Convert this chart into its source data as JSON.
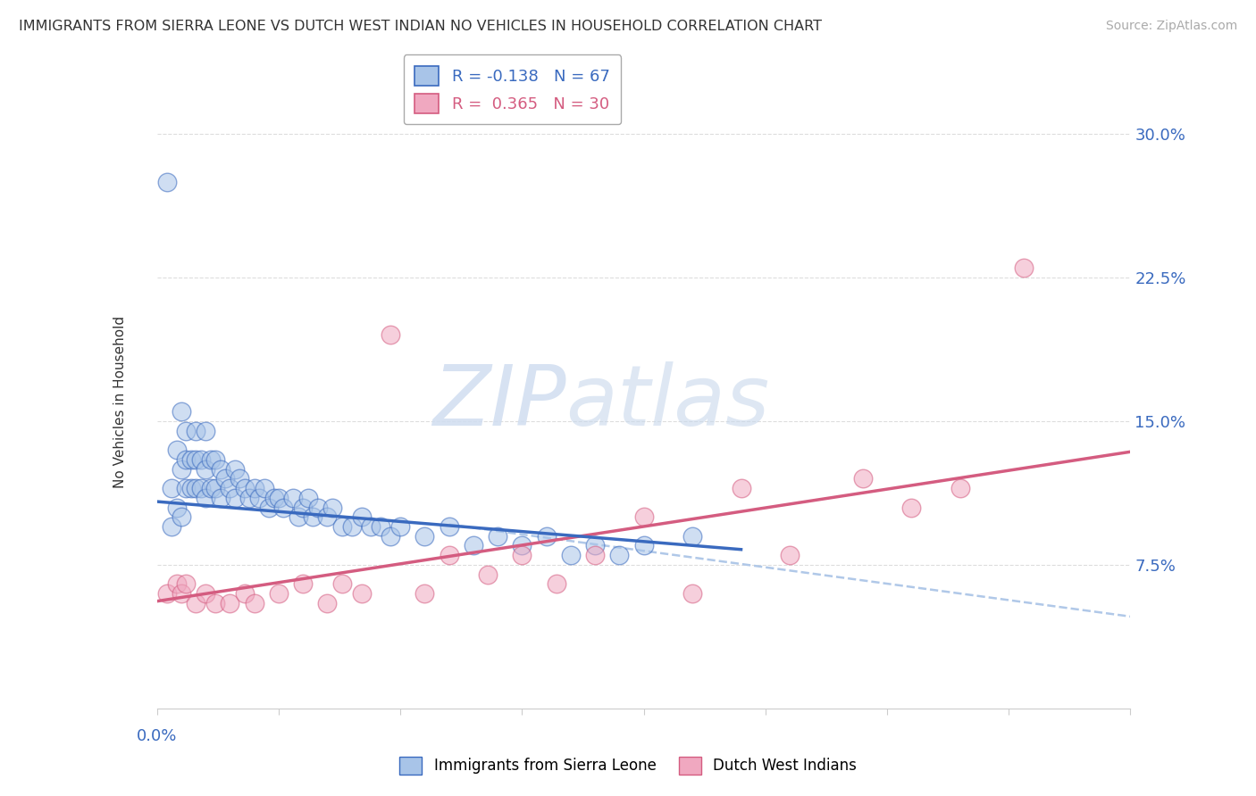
{
  "title": "IMMIGRANTS FROM SIERRA LEONE VS DUTCH WEST INDIAN NO VEHICLES IN HOUSEHOLD CORRELATION CHART",
  "source": "Source: ZipAtlas.com",
  "legend_blue": "R = -0.138   N = 67",
  "legend_pink": "R =  0.365   N = 30",
  "watermark_left": "ZIP",
  "watermark_right": "atlas",
  "blue_color": "#a8c4e8",
  "pink_color": "#f0a8c0",
  "blue_line_color": "#3a6abf",
  "pink_line_color": "#d45c80",
  "blue_scatter_x": [
    0.002,
    0.003,
    0.003,
    0.004,
    0.004,
    0.005,
    0.005,
    0.005,
    0.006,
    0.006,
    0.006,
    0.007,
    0.007,
    0.008,
    0.008,
    0.008,
    0.009,
    0.009,
    0.01,
    0.01,
    0.01,
    0.011,
    0.011,
    0.012,
    0.012,
    0.013,
    0.013,
    0.014,
    0.015,
    0.016,
    0.016,
    0.017,
    0.018,
    0.019,
    0.02,
    0.021,
    0.022,
    0.023,
    0.024,
    0.025,
    0.026,
    0.028,
    0.029,
    0.03,
    0.031,
    0.032,
    0.033,
    0.035,
    0.036,
    0.038,
    0.04,
    0.042,
    0.044,
    0.046,
    0.048,
    0.05,
    0.055,
    0.06,
    0.065,
    0.07,
    0.075,
    0.08,
    0.085,
    0.09,
    0.095,
    0.1,
    0.11
  ],
  "blue_scatter_y": [
    0.275,
    0.115,
    0.095,
    0.135,
    0.105,
    0.155,
    0.125,
    0.1,
    0.145,
    0.13,
    0.115,
    0.13,
    0.115,
    0.145,
    0.13,
    0.115,
    0.13,
    0.115,
    0.125,
    0.11,
    0.145,
    0.13,
    0.115,
    0.13,
    0.115,
    0.125,
    0.11,
    0.12,
    0.115,
    0.125,
    0.11,
    0.12,
    0.115,
    0.11,
    0.115,
    0.11,
    0.115,
    0.105,
    0.11,
    0.11,
    0.105,
    0.11,
    0.1,
    0.105,
    0.11,
    0.1,
    0.105,
    0.1,
    0.105,
    0.095,
    0.095,
    0.1,
    0.095,
    0.095,
    0.09,
    0.095,
    0.09,
    0.095,
    0.085,
    0.09,
    0.085,
    0.09,
    0.08,
    0.085,
    0.08,
    0.085,
    0.09
  ],
  "pink_scatter_x": [
    0.002,
    0.004,
    0.005,
    0.006,
    0.008,
    0.01,
    0.012,
    0.015,
    0.018,
    0.02,
    0.025,
    0.03,
    0.035,
    0.038,
    0.042,
    0.048,
    0.055,
    0.06,
    0.068,
    0.075,
    0.082,
    0.09,
    0.1,
    0.11,
    0.12,
    0.13,
    0.145,
    0.155,
    0.165,
    0.178
  ],
  "pink_scatter_y": [
    0.06,
    0.065,
    0.06,
    0.065,
    0.055,
    0.06,
    0.055,
    0.055,
    0.06,
    0.055,
    0.06,
    0.065,
    0.055,
    0.065,
    0.06,
    0.195,
    0.06,
    0.08,
    0.07,
    0.08,
    0.065,
    0.08,
    0.1,
    0.06,
    0.115,
    0.08,
    0.12,
    0.105,
    0.115,
    0.23
  ],
  "blue_line_x0": 0.0,
  "blue_line_y0": 0.108,
  "blue_line_x1": 0.12,
  "blue_line_y1": 0.083,
  "pink_line_x0": 0.0,
  "pink_line_y0": 0.056,
  "pink_line_x1": 0.2,
  "pink_line_y1": 0.134,
  "dash_line_x0": 0.06,
  "dash_line_y0": 0.096,
  "dash_line_x1": 0.2,
  "dash_line_y1": 0.048,
  "xlim": [
    0.0,
    0.2
  ],
  "ylim": [
    0.0,
    0.32
  ],
  "ylabel_ticks": [
    0.0,
    0.075,
    0.15,
    0.225,
    0.3
  ],
  "ylabel_labels": [
    "",
    "7.5%",
    "15.0%",
    "22.5%",
    "30.0%"
  ],
  "figsize": [
    14.06,
    8.92
  ],
  "dpi": 100
}
